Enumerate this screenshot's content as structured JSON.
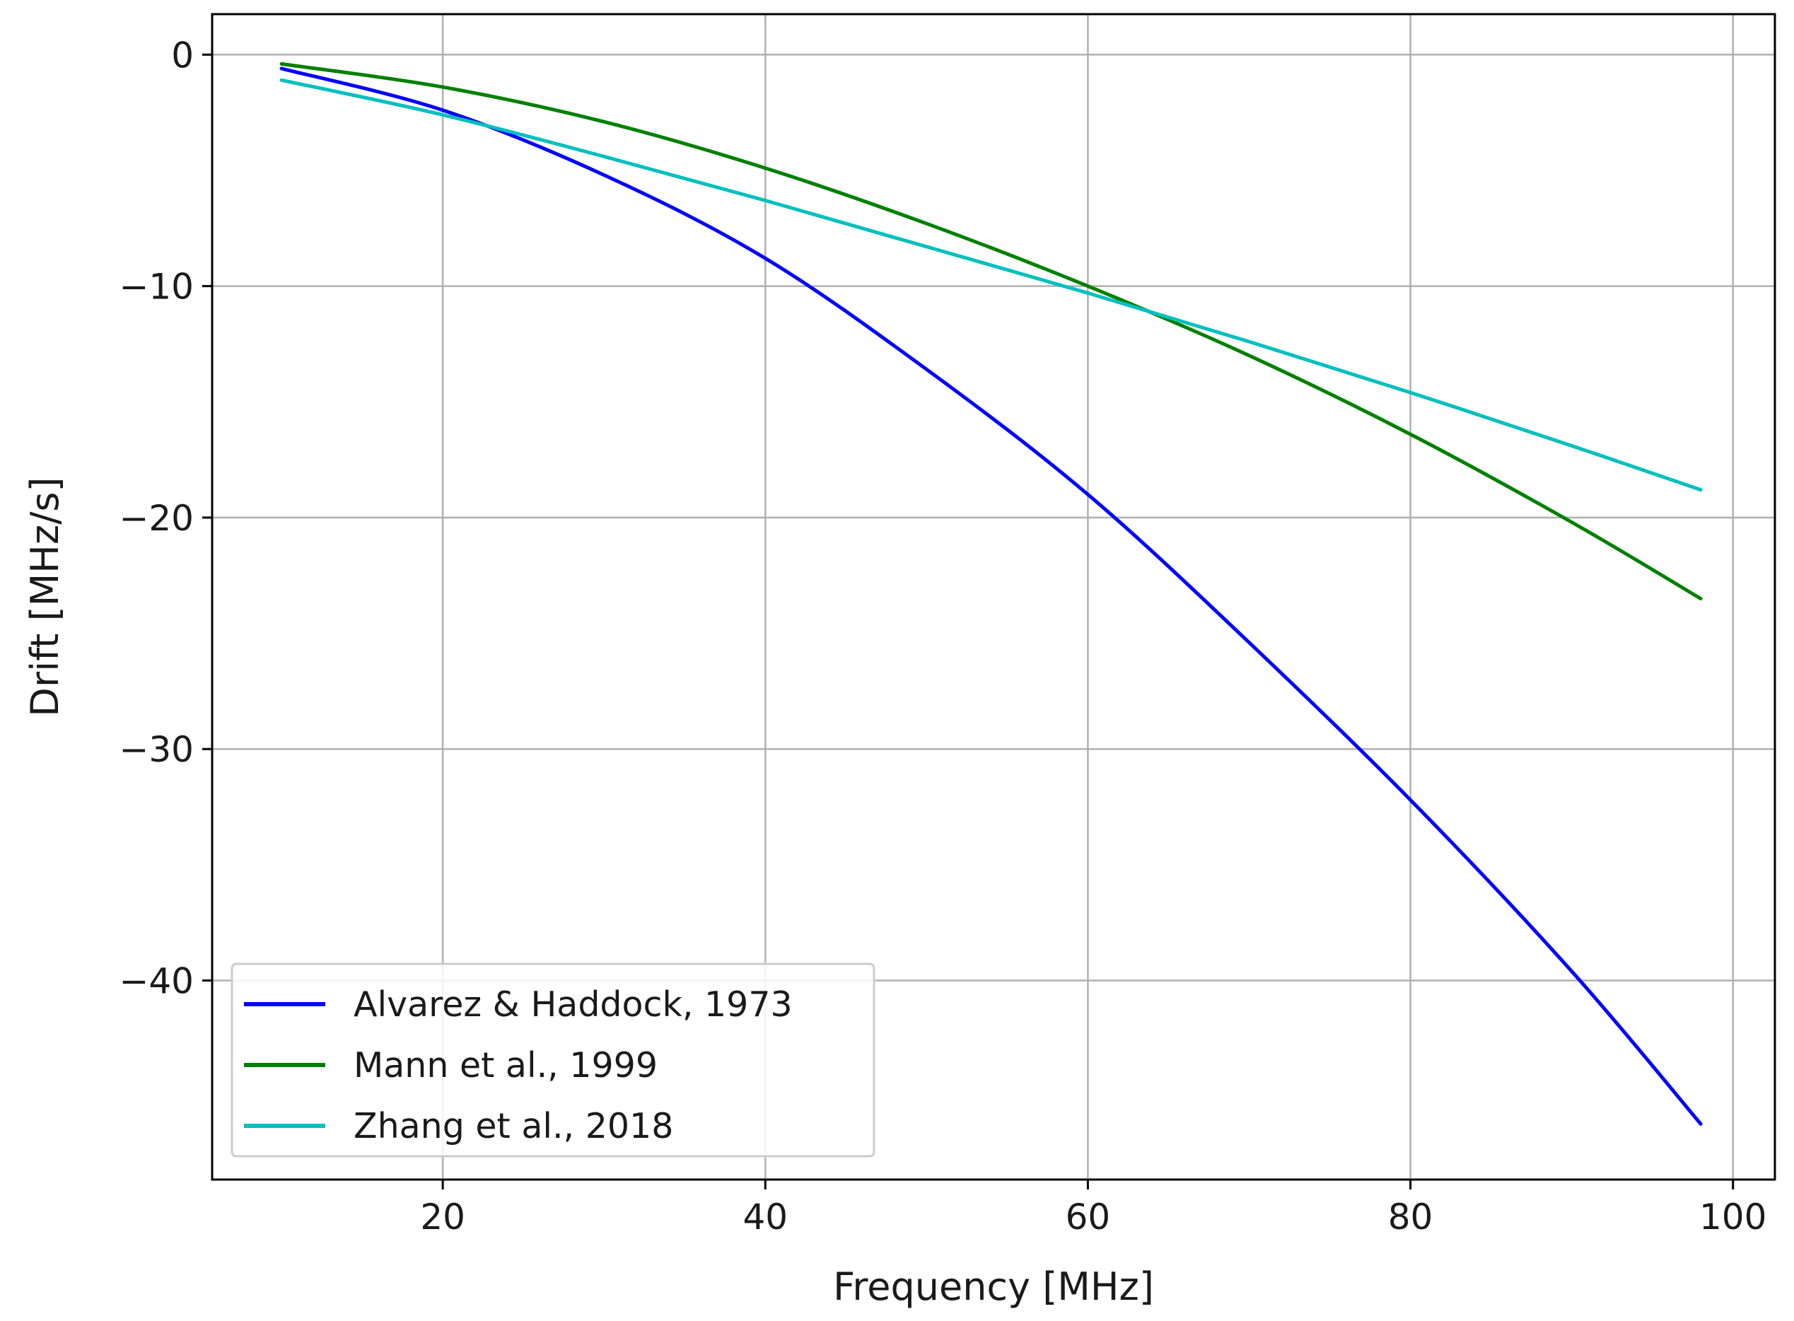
{
  "chart_data": {
    "type": "line",
    "title": "",
    "xlabel": "Frequency [MHz]",
    "ylabel": "Drift [MHz/s]",
    "xlim": [
      5.7,
      102.6
    ],
    "ylim": [
      -48.6,
      1.75
    ],
    "xticks": [
      20,
      40,
      60,
      80,
      100
    ],
    "yticks": [
      0,
      -10,
      -20,
      -30,
      -40
    ],
    "xtick_labels": [
      "20",
      "40",
      "60",
      "80",
      "100"
    ],
    "ytick_labels": [
      "0",
      "−10",
      "−20",
      "−30",
      "−40"
    ],
    "grid": true,
    "legend_position": "lower-left",
    "x": [
      10,
      20,
      30,
      40,
      50,
      60,
      70,
      80,
      90,
      98
    ],
    "series": [
      {
        "name": "Alvarez & Haddock, 1973",
        "color": "#0000ff",
        "values": [
          -0.6,
          -2.4,
          -5.2,
          -8.8,
          -13.6,
          -19.0,
          -25.4,
          -32.2,
          -39.6,
          -46.2
        ]
      },
      {
        "name": "Mann et al., 1999",
        "color": "#008000",
        "values": [
          -0.4,
          -1.4,
          -2.9,
          -4.9,
          -7.3,
          -10.0,
          -13.0,
          -16.4,
          -20.2,
          -23.5
        ]
      },
      {
        "name": "Zhang et al., 2018",
        "color": "#00bfbf",
        "values": [
          -1.1,
          -2.6,
          -4.4,
          -6.3,
          -8.3,
          -10.3,
          -12.4,
          -14.6,
          -16.9,
          -18.8
        ]
      }
    ]
  }
}
